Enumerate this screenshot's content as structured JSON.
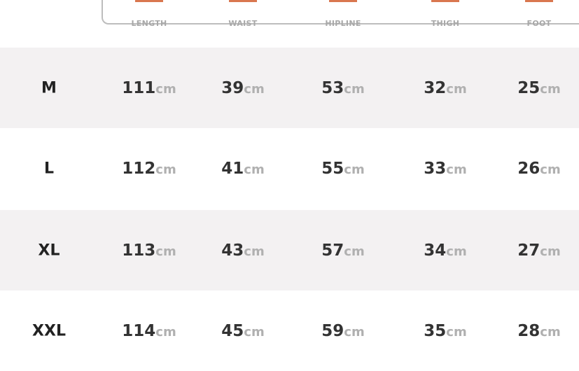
{
  "header": {
    "columns": [
      "LENGTH",
      "WAIST",
      "HIPLINE",
      "THIGH",
      "FOOT"
    ]
  },
  "unit": "cm",
  "rows": [
    {
      "size": "M",
      "values": [
        "111",
        "39",
        "53",
        "32",
        "25"
      ]
    },
    {
      "size": "L",
      "values": [
        "112",
        "41",
        "55",
        "33",
        "26"
      ]
    },
    {
      "size": "XL",
      "values": [
        "113",
        "43",
        "57",
        "34",
        "27"
      ]
    },
    {
      "size": "XXL",
      "values": [
        "114",
        "45",
        "59",
        "35",
        "28"
      ]
    }
  ],
  "colors": {
    "accent": "#d9774f",
    "band": "#f3f1f2"
  }
}
